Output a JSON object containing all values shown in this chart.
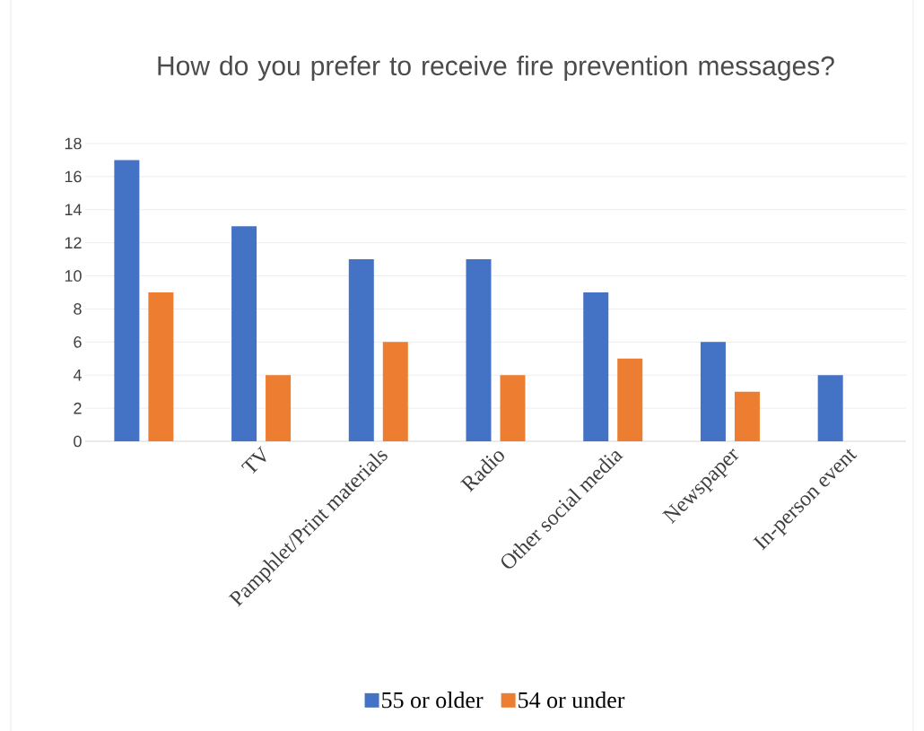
{
  "chart_data": {
    "type": "bar",
    "title": "How do you prefer to receive fire prevention messages?",
    "categories": [
      null,
      "TV",
      "Pamphlet/Print materials",
      "Radio",
      "Other social media",
      "Newspaper",
      "In-person event"
    ],
    "series": [
      {
        "name": "55 or older",
        "color": "#4472c4",
        "values": [
          17,
          13,
          11,
          11,
          9,
          6,
          4
        ]
      },
      {
        "name": "54 or under",
        "color": "#ed7d31",
        "values": [
          9,
          4,
          6,
          4,
          5,
          3,
          0
        ]
      }
    ],
    "ylim": [
      0,
      18
    ],
    "yticks": [
      0,
      2,
      4,
      6,
      8,
      10,
      12,
      14,
      16,
      18
    ],
    "grid": "y",
    "legend": "bottom"
  }
}
